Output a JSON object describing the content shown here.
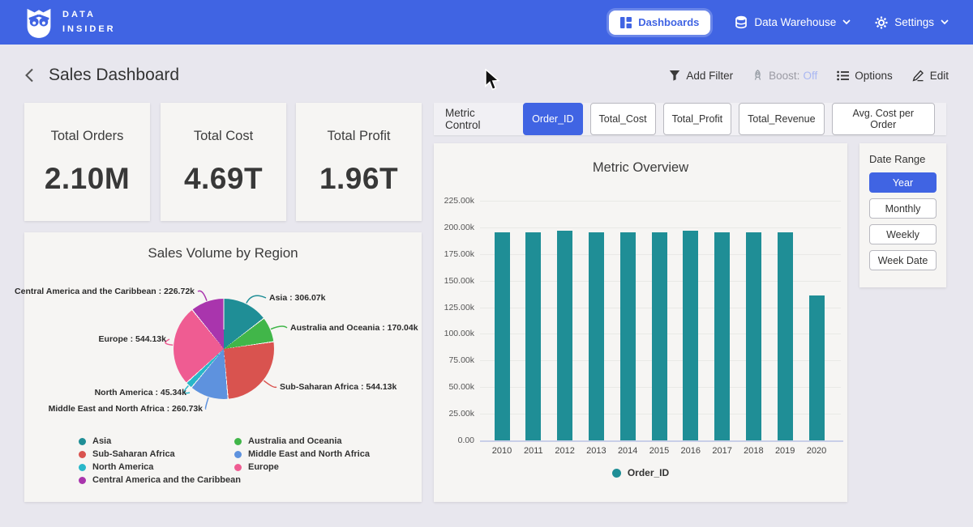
{
  "navbar": {
    "logo_line1": "DATA",
    "logo_line2": "INSIDER",
    "dashboards_label": "Dashboards",
    "data_warehouse_label": "Data Warehouse",
    "settings_label": "Settings"
  },
  "header": {
    "title": "Sales Dashboard",
    "add_filter_label": "Add Filter",
    "boost_label": "Boost:",
    "boost_state": "Off",
    "options_label": "Options",
    "edit_label": "Edit"
  },
  "kpis": [
    {
      "label": "Total Orders",
      "value": "2.10M"
    },
    {
      "label": "Total Cost",
      "value": "4.69T"
    },
    {
      "label": "Total Profit",
      "value": "1.96T"
    }
  ],
  "metric_control": {
    "label": "Metric Control",
    "options": [
      {
        "label": "Order_ID",
        "selected": true
      },
      {
        "label": "Total_Cost",
        "selected": false
      },
      {
        "label": "Total_Profit",
        "selected": false
      },
      {
        "label": "Total_Revenue",
        "selected": false
      },
      {
        "label": "Avg. Cost per Order",
        "selected": false
      }
    ]
  },
  "date_range": {
    "label": "Date Range",
    "options": [
      {
        "label": "Year",
        "selected": true
      },
      {
        "label": "Monthly",
        "selected": false
      },
      {
        "label": "Weekly",
        "selected": false
      },
      {
        "label": "Week Date",
        "selected": false
      }
    ]
  },
  "colors": {
    "navbar_blue": "#4064e3",
    "selected_blue": "#4064e3",
    "teal": "#1f8e96",
    "page_bg": "#e8e7ee",
    "panel_bg": "#f6f5f3"
  },
  "chart_data": [
    {
      "name": "metric_overview",
      "type": "bar",
      "title": "Metric Overview",
      "categories": [
        "2010",
        "2011",
        "2012",
        "2013",
        "2014",
        "2015",
        "2016",
        "2017",
        "2018",
        "2019",
        "2020"
      ],
      "series": [
        {
          "name": "Order_ID",
          "values": [
            195500,
            195400,
            196600,
            195200,
            195100,
            195200,
            196600,
            195200,
            195300,
            195400,
            136300
          ]
        }
      ],
      "ylim": [
        0,
        225000
      ],
      "ytick_labels": [
        "0.00",
        "25.00k",
        "50.00k",
        "75.00k",
        "100.00k",
        "125.00k",
        "150.00k",
        "175.00k",
        "200.00k",
        "225.00k"
      ],
      "legend": [
        "Order_ID"
      ],
      "legend_position": "bottom",
      "grid": true,
      "bar_color": "#1f8e96"
    },
    {
      "name": "sales_volume_by_region",
      "type": "pie",
      "title": "Sales Volume by Region",
      "slices": [
        {
          "label": "Asia",
          "value": 306070,
          "display": "306.07k",
          "color": "#1f8e96"
        },
        {
          "label": "Australia and Oceania",
          "value": 170040,
          "display": "170.04k",
          "color": "#41b649"
        },
        {
          "label": "Sub-Saharan Africa",
          "value": 544130,
          "display": "544.13k",
          "color": "#d9534f"
        },
        {
          "label": "Middle East and North Africa",
          "value": 260730,
          "display": "260.73k",
          "color": "#5e92de"
        },
        {
          "label": "North America",
          "value": 45340,
          "display": "45.34k",
          "color": "#29b7c9"
        },
        {
          "label": "Europe",
          "value": 544130,
          "display": "544.13k",
          "color": "#ef5c92"
        },
        {
          "label": "Central America and the Caribbean",
          "value": 226720,
          "display": "226.72k",
          "color": "#a935ad"
        }
      ],
      "legend_columns": [
        [
          0,
          2,
          4,
          6
        ],
        [
          1,
          3,
          5
        ]
      ]
    }
  ]
}
